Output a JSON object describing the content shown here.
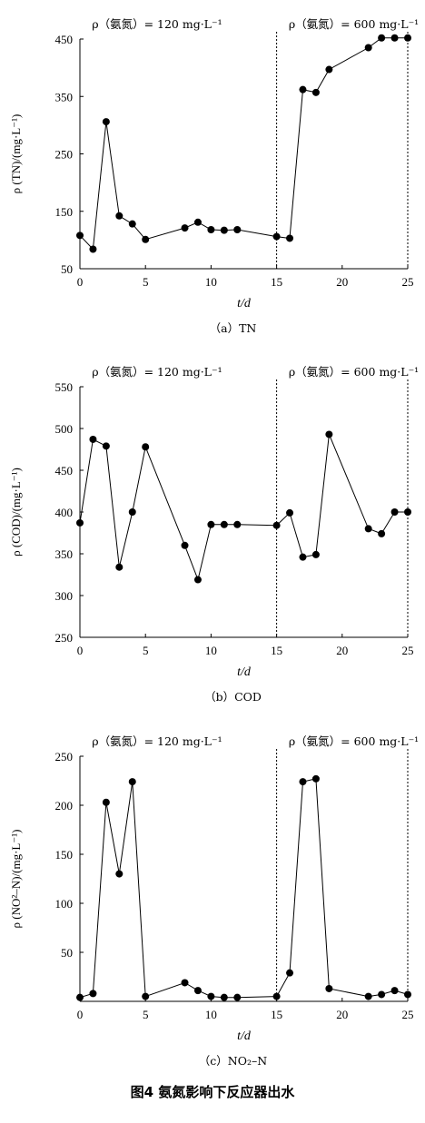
{
  "figure_caption": "图4 氨氮影响下反应器出水",
  "chart_data": [
    {
      "type": "line",
      "panel_caption": "（a）TN",
      "xlabel": "t/d",
      "ylabel": "ρ (TN)/(mg·L⁻¹)",
      "xlim": [
        0,
        25
      ],
      "ylim": [
        50,
        450
      ],
      "xticks": [
        0,
        5,
        10,
        15,
        20,
        25
      ],
      "yticks": [
        50,
        150,
        250,
        350,
        450
      ],
      "annotations": [
        {
          "text": "ρ（氨氮）= 120 mg·L⁻¹",
          "x": 0.5
        },
        {
          "text": "ρ（氨氮）= 600 mg·L⁻¹",
          "x": 15.5
        }
      ],
      "dashed_lines_x": [
        15,
        25
      ],
      "x": [
        0,
        1,
        2,
        3,
        4,
        5,
        8,
        9,
        10,
        11,
        12,
        15,
        16,
        17,
        18,
        19,
        22,
        23,
        24,
        25
      ],
      "y": [
        108,
        84,
        306,
        142,
        128,
        101,
        121,
        131,
        118,
        117,
        118,
        106,
        103,
        362,
        357,
        397,
        435,
        452,
        452,
        452
      ]
    },
    {
      "type": "line",
      "panel_caption": "（b）COD",
      "xlabel": "t/d",
      "ylabel": "ρ (COD)/(mg·L⁻¹)",
      "xlim": [
        0,
        25
      ],
      "ylim": [
        250,
        550
      ],
      "xticks": [
        0,
        5,
        10,
        15,
        20,
        25
      ],
      "yticks": [
        250,
        300,
        350,
        400,
        450,
        500,
        550
      ],
      "annotations": [
        {
          "text": "ρ（氨氮）= 120 mg·L⁻¹",
          "x": 0.5
        },
        {
          "text": "ρ（氨氮）= 600 mg·L⁻¹",
          "x": 15.5
        }
      ],
      "dashed_lines_x": [
        15,
        25
      ],
      "x": [
        0,
        1,
        2,
        3,
        4,
        5,
        8,
        9,
        10,
        11,
        12,
        15,
        16,
        17,
        18,
        19,
        22,
        23,
        24,
        25
      ],
      "y": [
        387,
        487,
        479,
        334,
        400,
        478,
        360,
        319,
        385,
        385,
        385,
        384,
        399,
        346,
        349,
        493,
        380,
        374,
        400,
        400
      ]
    },
    {
      "type": "line",
      "panel_caption": "（c）NO₂–N",
      "xlabel": "t/d",
      "ylabel": "ρ (NO²–N)/(mg·L⁻¹)",
      "xlim": [
        0,
        25
      ],
      "ylim": [
        0,
        250
      ],
      "xticks": [
        0,
        5,
        10,
        15,
        20,
        25
      ],
      "yticks": [
        50,
        100,
        150,
        200,
        250
      ],
      "annotations": [
        {
          "text": "ρ（氨氮）= 120 mg·L⁻¹",
          "x": 0.5
        },
        {
          "text": "ρ（氨氮）= 600 mg·L⁻¹",
          "x": 15.5
        }
      ],
      "dashed_lines_x": [
        15,
        25
      ],
      "x": [
        0,
        1,
        2,
        3,
        4,
        5,
        8,
        9,
        10,
        11,
        12,
        15,
        16,
        17,
        18,
        19,
        22,
        23,
        24,
        25
      ],
      "y": [
        4,
        8,
        203,
        130,
        224,
        5,
        19,
        11,
        5,
        4,
        4,
        5,
        29,
        224,
        227,
        13,
        5,
        7,
        11,
        7
      ]
    }
  ]
}
